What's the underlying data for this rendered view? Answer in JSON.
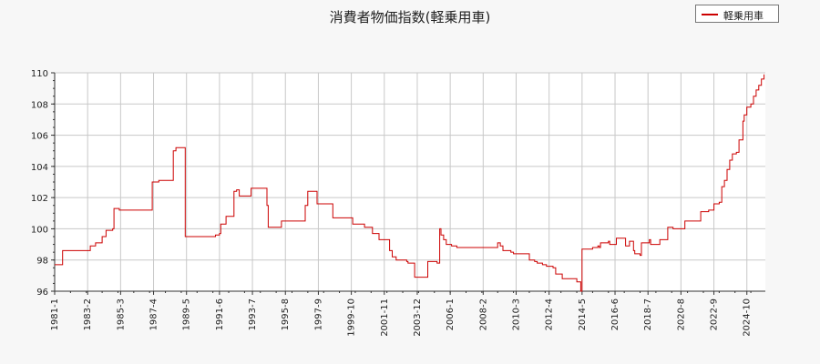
{
  "chart_data": {
    "type": "line",
    "title": "消費者物価指数(軽乗用車)",
    "xlabel": "",
    "ylabel": "",
    "ylim": [
      96,
      110
    ],
    "yticks": [
      "96",
      "98",
      "100",
      "102",
      "104",
      "106",
      "108",
      "110"
    ],
    "xticks": [
      "1981-1",
      "1983-2",
      "1985-3",
      "1987-4",
      "1989-5",
      "1991-6",
      "1993-7",
      "1995-8",
      "1997-9",
      "1999-10",
      "2001-11",
      "2003-12",
      "2006-1",
      "2008-2",
      "2010-3",
      "2012-4",
      "2014-5",
      "2016-6",
      "2018-7",
      "2020-8",
      "2022-9",
      "2024-10"
    ],
    "grid": true,
    "legend_position": "top-right",
    "series": [
      {
        "name": "軽乗用車",
        "color": "#cc0000",
        "points": [
          [
            "1981-1",
            97.7
          ],
          [
            "1981-6",
            97.7
          ],
          [
            "1981-7",
            98.6
          ],
          [
            "1982-12",
            98.6
          ],
          [
            "1983-3",
            98.6
          ],
          [
            "1983-4",
            98.9
          ],
          [
            "1983-8",
            99.1
          ],
          [
            "1984-1",
            99.5
          ],
          [
            "1984-4",
            99.9
          ],
          [
            "1984-9",
            100.0
          ],
          [
            "1984-10",
            101.3
          ],
          [
            "1985-2",
            101.2
          ],
          [
            "1986-6",
            101.2
          ],
          [
            "1987-1",
            101.2
          ],
          [
            "1987-3",
            103.0
          ],
          [
            "1987-8",
            103.1
          ],
          [
            "1988-6",
            103.1
          ],
          [
            "1988-7",
            105.0
          ],
          [
            "1988-9",
            105.2
          ],
          [
            "1989-3",
            105.2
          ],
          [
            "1989-4",
            99.5
          ],
          [
            "1990-12",
            99.5
          ],
          [
            "1991-3",
            99.6
          ],
          [
            "1991-6",
            99.7
          ],
          [
            "1991-7",
            100.3
          ],
          [
            "1991-10",
            100.3
          ],
          [
            "1991-11",
            100.8
          ],
          [
            "1992-4",
            100.8
          ],
          [
            "1992-5",
            102.4
          ],
          [
            "1992-7",
            102.5
          ],
          [
            "1992-9",
            102.1
          ],
          [
            "1993-1",
            102.1
          ],
          [
            "1993-5",
            102.1
          ],
          [
            "1993-6",
            102.6
          ],
          [
            "1994-3",
            102.6
          ],
          [
            "1994-6",
            101.5
          ],
          [
            "1994-7",
            100.1
          ],
          [
            "1995-4",
            100.1
          ],
          [
            "1995-5",
            100.5
          ],
          [
            "1996-10",
            100.5
          ],
          [
            "1996-11",
            101.5
          ],
          [
            "1997-1",
            102.4
          ],
          [
            "1997-7",
            102.4
          ],
          [
            "1997-8",
            101.6
          ],
          [
            "1998-7",
            101.6
          ],
          [
            "1998-8",
            100.7
          ],
          [
            "1999-10",
            100.7
          ],
          [
            "1999-11",
            100.3
          ],
          [
            "2000-7",
            100.3
          ],
          [
            "2000-8",
            100.1
          ],
          [
            "2001-1",
            100.1
          ],
          [
            "2001-2",
            99.7
          ],
          [
            "2001-6",
            99.7
          ],
          [
            "2001-7",
            99.3
          ],
          [
            "2002-2",
            99.3
          ],
          [
            "2002-3",
            98.6
          ],
          [
            "2002-5",
            98.2
          ],
          [
            "2002-8",
            98.0
          ],
          [
            "2003-4",
            97.9
          ],
          [
            "2003-5",
            97.8
          ],
          [
            "2003-9",
            97.8
          ],
          [
            "2003-10",
            96.9
          ],
          [
            "2004-7",
            96.9
          ],
          [
            "2004-8",
            97.9
          ],
          [
            "2005-2",
            97.9
          ],
          [
            "2005-3",
            97.8
          ],
          [
            "2005-5",
            100.0
          ],
          [
            "2005-6",
            99.6
          ],
          [
            "2005-8",
            99.3
          ],
          [
            "2005-10",
            99.0
          ],
          [
            "2006-2",
            98.9
          ],
          [
            "2006-6",
            98.8
          ],
          [
            "2008-12",
            98.8
          ],
          [
            "2009-1",
            99.1
          ],
          [
            "2009-3",
            98.9
          ],
          [
            "2009-5",
            98.6
          ],
          [
            "2009-11",
            98.5
          ],
          [
            "2010-1",
            98.4
          ],
          [
            "2010-12",
            98.4
          ],
          [
            "2011-1",
            98.0
          ],
          [
            "2011-5",
            97.9
          ],
          [
            "2011-7",
            97.8
          ],
          [
            "2011-11",
            97.7
          ],
          [
            "2012-2",
            97.6
          ],
          [
            "2012-7",
            97.5
          ],
          [
            "2012-9",
            97.1
          ],
          [
            "2013-2",
            96.8
          ],
          [
            "2013-11",
            96.8
          ],
          [
            "2014-1",
            96.6
          ],
          [
            "2014-4",
            96.0
          ],
          [
            "2014-5",
            98.7
          ],
          [
            "2014-11",
            98.7
          ],
          [
            "2015-1",
            98.8
          ],
          [
            "2015-5",
            98.9
          ],
          [
            "2015-6",
            98.8
          ],
          [
            "2015-7",
            99.1
          ],
          [
            "2016-1",
            99.2
          ],
          [
            "2016-2",
            99.0
          ],
          [
            "2016-6",
            99.0
          ],
          [
            "2016-7",
            99.4
          ],
          [
            "2017-1",
            99.4
          ],
          [
            "2017-2",
            98.9
          ],
          [
            "2017-5",
            99.2
          ],
          [
            "2017-8",
            98.6
          ],
          [
            "2017-9",
            98.4
          ],
          [
            "2018-1",
            98.3
          ],
          [
            "2018-2",
            99.1
          ],
          [
            "2018-8",
            99.3
          ],
          [
            "2018-9",
            99.0
          ],
          [
            "2019-4",
            99.3
          ],
          [
            "2019-9",
            99.3
          ],
          [
            "2019-10",
            100.1
          ],
          [
            "2020-2",
            100.0
          ],
          [
            "2020-8",
            100.0
          ],
          [
            "2020-11",
            100.5
          ],
          [
            "2021-3",
            100.5
          ],
          [
            "2021-10",
            100.5
          ],
          [
            "2021-11",
            101.1
          ],
          [
            "2022-4",
            101.1
          ],
          [
            "2022-5",
            101.2
          ],
          [
            "2022-9",
            101.6
          ],
          [
            "2023-1",
            101.7
          ],
          [
            "2023-3",
            102.7
          ],
          [
            "2023-5",
            103.1
          ],
          [
            "2023-7",
            103.8
          ],
          [
            "2023-9",
            104.4
          ],
          [
            "2023-11",
            104.8
          ],
          [
            "2024-2",
            104.9
          ],
          [
            "2024-4",
            105.7
          ],
          [
            "2024-7",
            106.9
          ],
          [
            "2024-8",
            107.3
          ],
          [
            "2024-10",
            107.8
          ],
          [
            "2025-1",
            108.0
          ],
          [
            "2025-3",
            108.5
          ],
          [
            "2025-5",
            108.9
          ],
          [
            "2025-7",
            109.2
          ],
          [
            "2025-9",
            109.6
          ],
          [
            "2025-11",
            109.9
          ]
        ]
      }
    ]
  }
}
